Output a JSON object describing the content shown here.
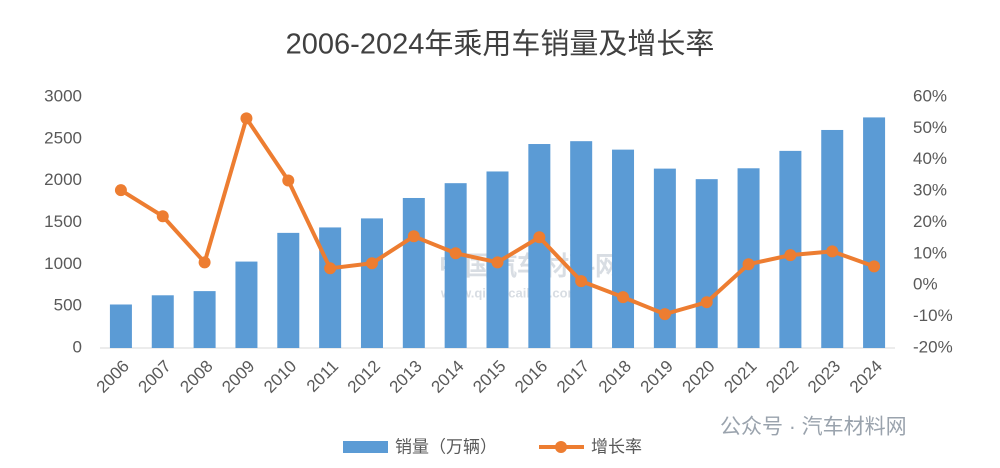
{
  "chart_data": {
    "type": "bar_line",
    "title": "2006-2024年乘用车销量及增长率",
    "categories": [
      "2006",
      "2007",
      "2008",
      "2009",
      "2010",
      "2011",
      "2012",
      "2013",
      "2014",
      "2015",
      "2016",
      "2017",
      "2018",
      "2019",
      "2020",
      "2021",
      "2022",
      "2023",
      "2024"
    ],
    "series": [
      {
        "name": "销量（万辆）",
        "color": "#5b9bd5",
        "type": "bar",
        "values": [
          520,
          630,
          680,
          1033,
          1376,
          1441,
          1549,
          1793,
          1970,
          2110,
          2438,
          2472,
          2371,
          2144,
          2018,
          2148,
          2356,
          2606,
          2756
        ]
      },
      {
        "name": "增长率",
        "color": "#ed7d31",
        "type": "line",
        "axis": "y2",
        "values": [
          30.3,
          22.0,
          7.3,
          53.2,
          33.4,
          5.4,
          7.0,
          15.6,
          10.2,
          7.3,
          15.3,
          1.3,
          -3.8,
          -9.2,
          -5.4,
          6.7,
          9.6,
          10.8,
          6.0
        ]
      }
    ],
    "ylim": [
      0,
      3000
    ],
    "yticks": [
      0,
      500,
      1000,
      1500,
      2000,
      2500,
      3000
    ],
    "y2lim": [
      -20,
      60
    ],
    "y2ticks": [
      {
        "value": -20,
        "label": "-20%"
      },
      {
        "value": -10,
        "label": "-10%"
      },
      {
        "value": 0,
        "label": "0%"
      },
      {
        "value": 10,
        "label": "10%"
      },
      {
        "value": 20,
        "label": "20%"
      },
      {
        "value": 30,
        "label": "30%"
      },
      {
        "value": 40,
        "label": "40%"
      },
      {
        "value": 50,
        "label": "50%"
      },
      {
        "value": 60,
        "label": "60%"
      }
    ],
    "legend": "bottom",
    "annotations": [
      "中国汽车材料网",
      "www.qichecailiao.com",
      "公众号 · 汽车材料网"
    ]
  }
}
